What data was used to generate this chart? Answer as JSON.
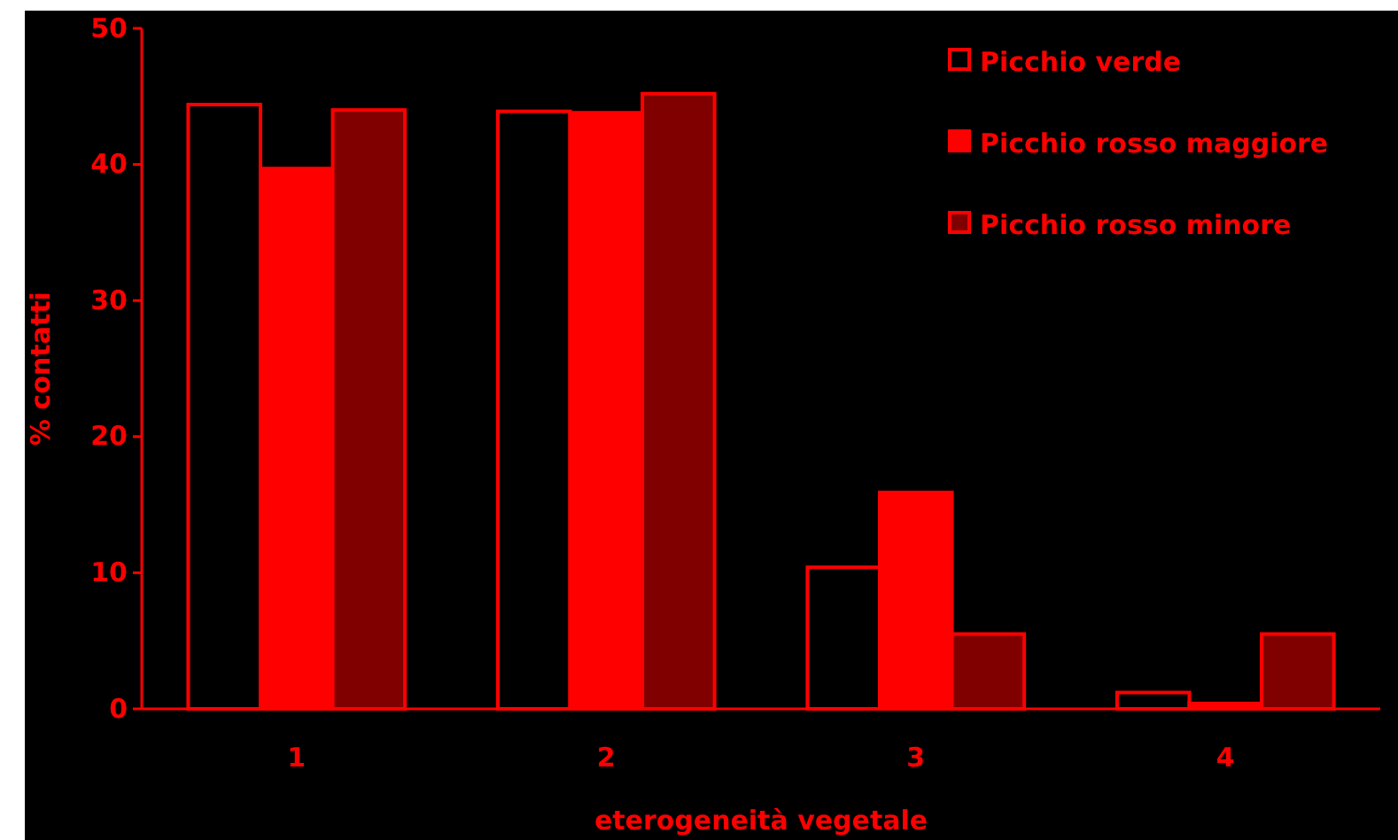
{
  "chart_data": {
    "type": "bar",
    "xlabel": "eterogeneità vegetale",
    "ylabel": "% contatti",
    "categories": [
      "1",
      "2",
      "3",
      "4"
    ],
    "series": [
      {
        "name": "Picchio verde",
        "color": "#000000",
        "values": [
          44.4,
          43.9,
          10.4,
          1.2
        ]
      },
      {
        "name": "Picchio rosso maggiore",
        "color": "#ff0000",
        "values": [
          39.7,
          43.8,
          15.9,
          0.4
        ]
      },
      {
        "name": "Picchio rosso minore",
        "color": "#800000",
        "values": [
          44.0,
          45.2,
          5.5,
          5.5
        ]
      }
    ],
    "ylim": [
      0,
      50
    ],
    "yticks": [
      0,
      10,
      20,
      30,
      40,
      50
    ],
    "legend": "top right"
  }
}
